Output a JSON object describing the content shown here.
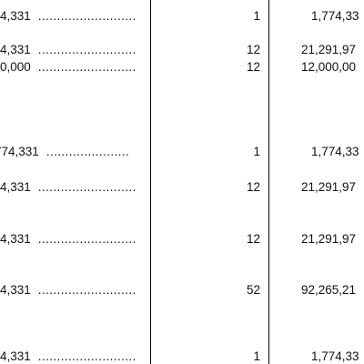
{
  "rows": [
    {
      "amount": "4,331",
      "leader": "..........................",
      "count": "1",
      "total": "1,774,33"
    },
    {
      "amount": "4,331",
      "leader": "..........................",
      "count": "12",
      "total": "21,291,97"
    },
    {
      "amount": "0,000",
      "leader": "..........................",
      "count": "12",
      "total": "12,000,00"
    },
    {
      "amount": "774,331",
      "leader": "......................",
      "count": "1",
      "total": "1,774,33"
    },
    {
      "amount": "4,331",
      "leader": "..........................",
      "count": "12",
      "total": "21,291,97"
    },
    {
      "amount": "4,331",
      "leader": "..........................",
      "count": "12",
      "total": "21,291,97"
    },
    {
      "amount": "4,331",
      "leader": "..........................",
      "count": "52",
      "total": "92,265,21"
    },
    {
      "amount": "4,331",
      "leader": "..........................",
      "count": "1",
      "total": "1,774,33"
    }
  ]
}
